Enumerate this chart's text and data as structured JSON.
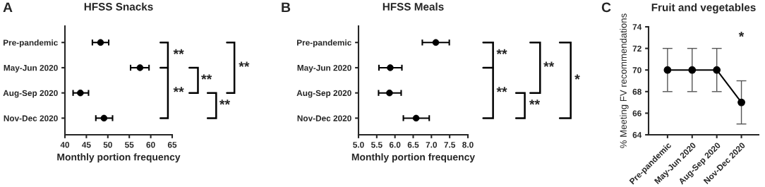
{
  "chart_data": [
    {
      "type": "scatter",
      "orientation": "horizontal",
      "title": "HFSS Snacks",
      "xlabel": "Monthly portion frequency",
      "categories": [
        "Pre-pandemic",
        "May-Jun 2020",
        "Aug-Sep 2020",
        "Nov-Dec 2020"
      ],
      "series": [
        {
          "color": "#000000",
          "values": [
            48.3,
            57.5,
            43.6,
            49.1
          ],
          "errors": [
            [
              46.4,
              50.2
            ],
            [
              55.3,
              59.6
            ],
            [
              41.9,
              45.5
            ],
            [
              47.2,
              51.1
            ]
          ]
        }
      ],
      "xlim": [
        40,
        65
      ],
      "xticks": [
        40,
        45,
        50,
        55,
        60,
        65
      ],
      "marker": "circle",
      "annotations": [
        "A",
        "**",
        "**",
        "**",
        "**",
        "**"
      ]
    },
    {
      "type": "scatter",
      "orientation": "horizontal",
      "title": "HFSS Meals",
      "xlabel": "Monthly portion frequency",
      "categories": [
        "Pre-pandemic",
        "May-Jun 2020",
        "Aug-Sep 2020",
        "Nov-Dec 2020"
      ],
      "series": [
        {
          "color": "#000000",
          "values": [
            7.12,
            5.87,
            5.85,
            6.58
          ],
          "errors": [
            [
              6.75,
              7.49
            ],
            [
              5.56,
              6.19
            ],
            [
              5.55,
              6.17
            ],
            [
              6.23,
              6.94
            ]
          ]
        }
      ],
      "xlim": [
        5.0,
        8.0
      ],
      "xticks": [
        {
          "value": 5.0,
          "label": "5.0"
        },
        {
          "value": 5.5,
          "label": "5.5"
        },
        {
          "value": 6.0,
          "label": "6.0"
        },
        {
          "value": 6.5,
          "label": "6.5"
        },
        {
          "value": 7.0,
          "label": "7.0"
        },
        {
          "value": 7.5,
          "label": "7.5"
        },
        {
          "value": 8.0,
          "label": "8.0"
        }
      ],
      "marker": "circle",
      "annotations": [
        "B",
        "**",
        "**",
        "**",
        "**",
        "*"
      ]
    },
    {
      "type": "line",
      "title": "Fruit and vegetables",
      "ylabel": "% Meeting FV recommendations",
      "categories": [
        "Pre-pandemic",
        "May-Jun 2020",
        "Aug-Sep 2020",
        "Nov-Dec 2020"
      ],
      "series": [
        {
          "color": "#000000",
          "values": [
            70,
            70,
            70,
            67
          ],
          "errors": [
            [
              68,
              72
            ],
            [
              68,
              72
            ],
            [
              68,
              72
            ],
            [
              65,
              69
            ]
          ]
        }
      ],
      "ylim": [
        64,
        74
      ],
      "yticks": [
        64,
        66,
        68,
        70,
        72,
        74
      ],
      "marker": "circle",
      "annotations": [
        "C",
        "*"
      ]
    }
  ]
}
